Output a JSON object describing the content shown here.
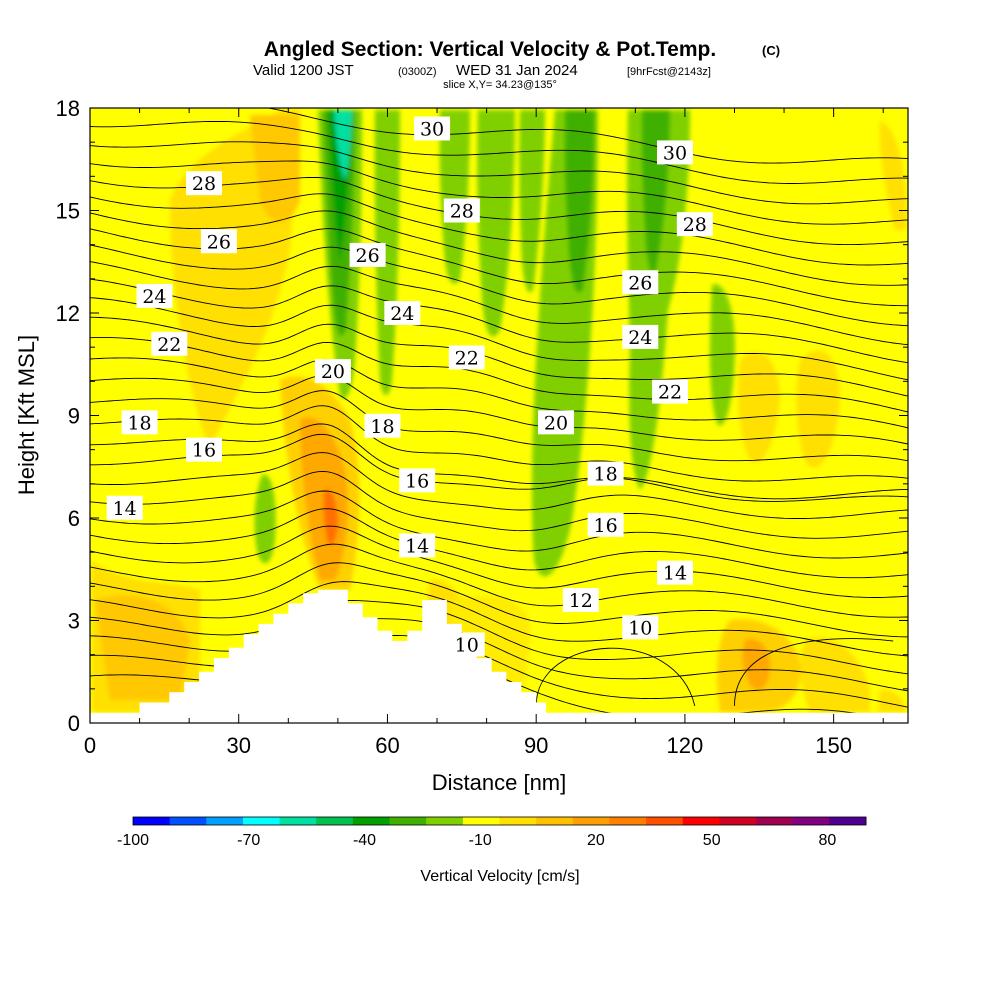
{
  "header": {
    "title": "Angled Section: Vertical Velocity & Pot.Temp.",
    "title_unit": "(C)",
    "valid_prefix": "Valid 1200 JST",
    "valid_z": "(0300Z)",
    "valid_date": "WED 31 Jan 2024",
    "valid_fcst": "[9hrFcst@2143z]",
    "slice": "slice X,Y= 34.23@135°"
  },
  "colors": {
    "background_field": "#ffff00",
    "terrain": "#ffffff",
    "contour": "#000000"
  },
  "chart_data": {
    "type": "heatmap",
    "xlabel": "Distance [nm]",
    "ylabel": "Height [Kft MSL]",
    "xlim": [
      0,
      165
    ],
    "ylim": [
      0,
      18
    ],
    "x_ticks": [
      0,
      30,
      60,
      90,
      120,
      150
    ],
    "y_ticks": [
      0,
      3,
      6,
      9,
      12,
      15,
      18
    ],
    "x_tick_labels": [
      "0",
      "30",
      "60",
      "90",
      "120",
      "150"
    ],
    "y_tick_labels": [
      "0",
      "3",
      "6",
      "9",
      "12",
      "15",
      "18"
    ],
    "colorbar": {
      "label": "Vertical Velocity [cm/s]",
      "colors": [
        "#0000ff",
        "#0050ff",
        "#00a0ff",
        "#00ffff",
        "#00e0a0",
        "#00c050",
        "#00a000",
        "#40b000",
        "#80d000",
        "#ffff00",
        "#ffe000",
        "#ffc000",
        "#ffa000",
        "#ff8000",
        "#ff5000",
        "#ff0000",
        "#d00020",
        "#a00050",
        "#800080",
        "#500090"
      ],
      "tick_labels": [
        "-100",
        "-70",
        "-40",
        "-10",
        "20",
        "50",
        "80"
      ],
      "tick_values": [
        -100,
        -70,
        -40,
        -10,
        20,
        50,
        80
      ],
      "range": [
        -100,
        90
      ]
    },
    "theta_labels": [
      {
        "text": "30",
        "x": 69,
        "y": 17.4
      },
      {
        "text": "30",
        "x": 118,
        "y": 16.7
      },
      {
        "text": "28",
        "x": 23,
        "y": 15.8
      },
      {
        "text": "28",
        "x": 75,
        "y": 15.0
      },
      {
        "text": "28",
        "x": 122,
        "y": 14.6
      },
      {
        "text": "26",
        "x": 26,
        "y": 14.1
      },
      {
        "text": "26",
        "x": 56,
        "y": 13.7
      },
      {
        "text": "26",
        "x": 111,
        "y": 12.9
      },
      {
        "text": "24",
        "x": 13,
        "y": 12.5
      },
      {
        "text": "24",
        "x": 63,
        "y": 12.0
      },
      {
        "text": "24",
        "x": 111,
        "y": 11.3
      },
      {
        "text": "22",
        "x": 16,
        "y": 11.1
      },
      {
        "text": "22",
        "x": 76,
        "y": 10.7
      },
      {
        "text": "22",
        "x": 117,
        "y": 9.7
      },
      {
        "text": "20",
        "x": 49,
        "y": 10.3
      },
      {
        "text": "20",
        "x": 94,
        "y": 8.8
      },
      {
        "text": "18",
        "x": 10,
        "y": 8.8
      },
      {
        "text": "18",
        "x": 59,
        "y": 8.7
      },
      {
        "text": "18",
        "x": 104,
        "y": 7.3
      },
      {
        "text": "16",
        "x": 23,
        "y": 8.0
      },
      {
        "text": "16",
        "x": 66,
        "y": 7.1
      },
      {
        "text": "16",
        "x": 104,
        "y": 5.8
      },
      {
        "text": "14",
        "x": 7,
        "y": 6.3
      },
      {
        "text": "14",
        "x": 66,
        "y": 5.2
      },
      {
        "text": "14",
        "x": 118,
        "y": 4.4
      },
      {
        "text": "12",
        "x": 99,
        "y": 3.6
      },
      {
        "text": "10",
        "x": 111,
        "y": 2.8
      },
      {
        "text": "10",
        "x": 76,
        "y": 2.3
      }
    ],
    "terrain_profile": [
      [
        10,
        0.6
      ],
      [
        16,
        0.6
      ],
      [
        16,
        0.9
      ],
      [
        19,
        0.9
      ],
      [
        19,
        1.2
      ],
      [
        22,
        1.2
      ],
      [
        22,
        1.5
      ],
      [
        25,
        1.5
      ],
      [
        25,
        1.9
      ],
      [
        28,
        1.9
      ],
      [
        28,
        2.2
      ],
      [
        31,
        2.2
      ],
      [
        31,
        2.6
      ],
      [
        34,
        2.6
      ],
      [
        34,
        2.9
      ],
      [
        37,
        2.9
      ],
      [
        37,
        3.2
      ],
      [
        40,
        3.2
      ],
      [
        40,
        3.5
      ],
      [
        43,
        3.5
      ],
      [
        43,
        3.8
      ],
      [
        46,
        3.8
      ],
      [
        46,
        3.9
      ],
      [
        52,
        3.9
      ],
      [
        52,
        3.5
      ],
      [
        55,
        3.5
      ],
      [
        55,
        3.1
      ],
      [
        58,
        3.1
      ],
      [
        58,
        2.7
      ],
      [
        61,
        2.7
      ],
      [
        61,
        2.4
      ],
      [
        64,
        2.4
      ],
      [
        64,
        2.7
      ],
      [
        67,
        2.7
      ],
      [
        67,
        3.6
      ],
      [
        72,
        3.6
      ],
      [
        72,
        2.9
      ],
      [
        75,
        2.9
      ],
      [
        75,
        2.3
      ],
      [
        78,
        2.3
      ],
      [
        78,
        1.9
      ],
      [
        81,
        1.9
      ],
      [
        81,
        1.5
      ],
      [
        84,
        1.5
      ],
      [
        84,
        1.2
      ],
      [
        87,
        1.2
      ],
      [
        87,
        0.9
      ],
      [
        90,
        0.9
      ],
      [
        90,
        0.6
      ],
      [
        92,
        0.6
      ],
      [
        92,
        0.3
      ]
    ]
  }
}
